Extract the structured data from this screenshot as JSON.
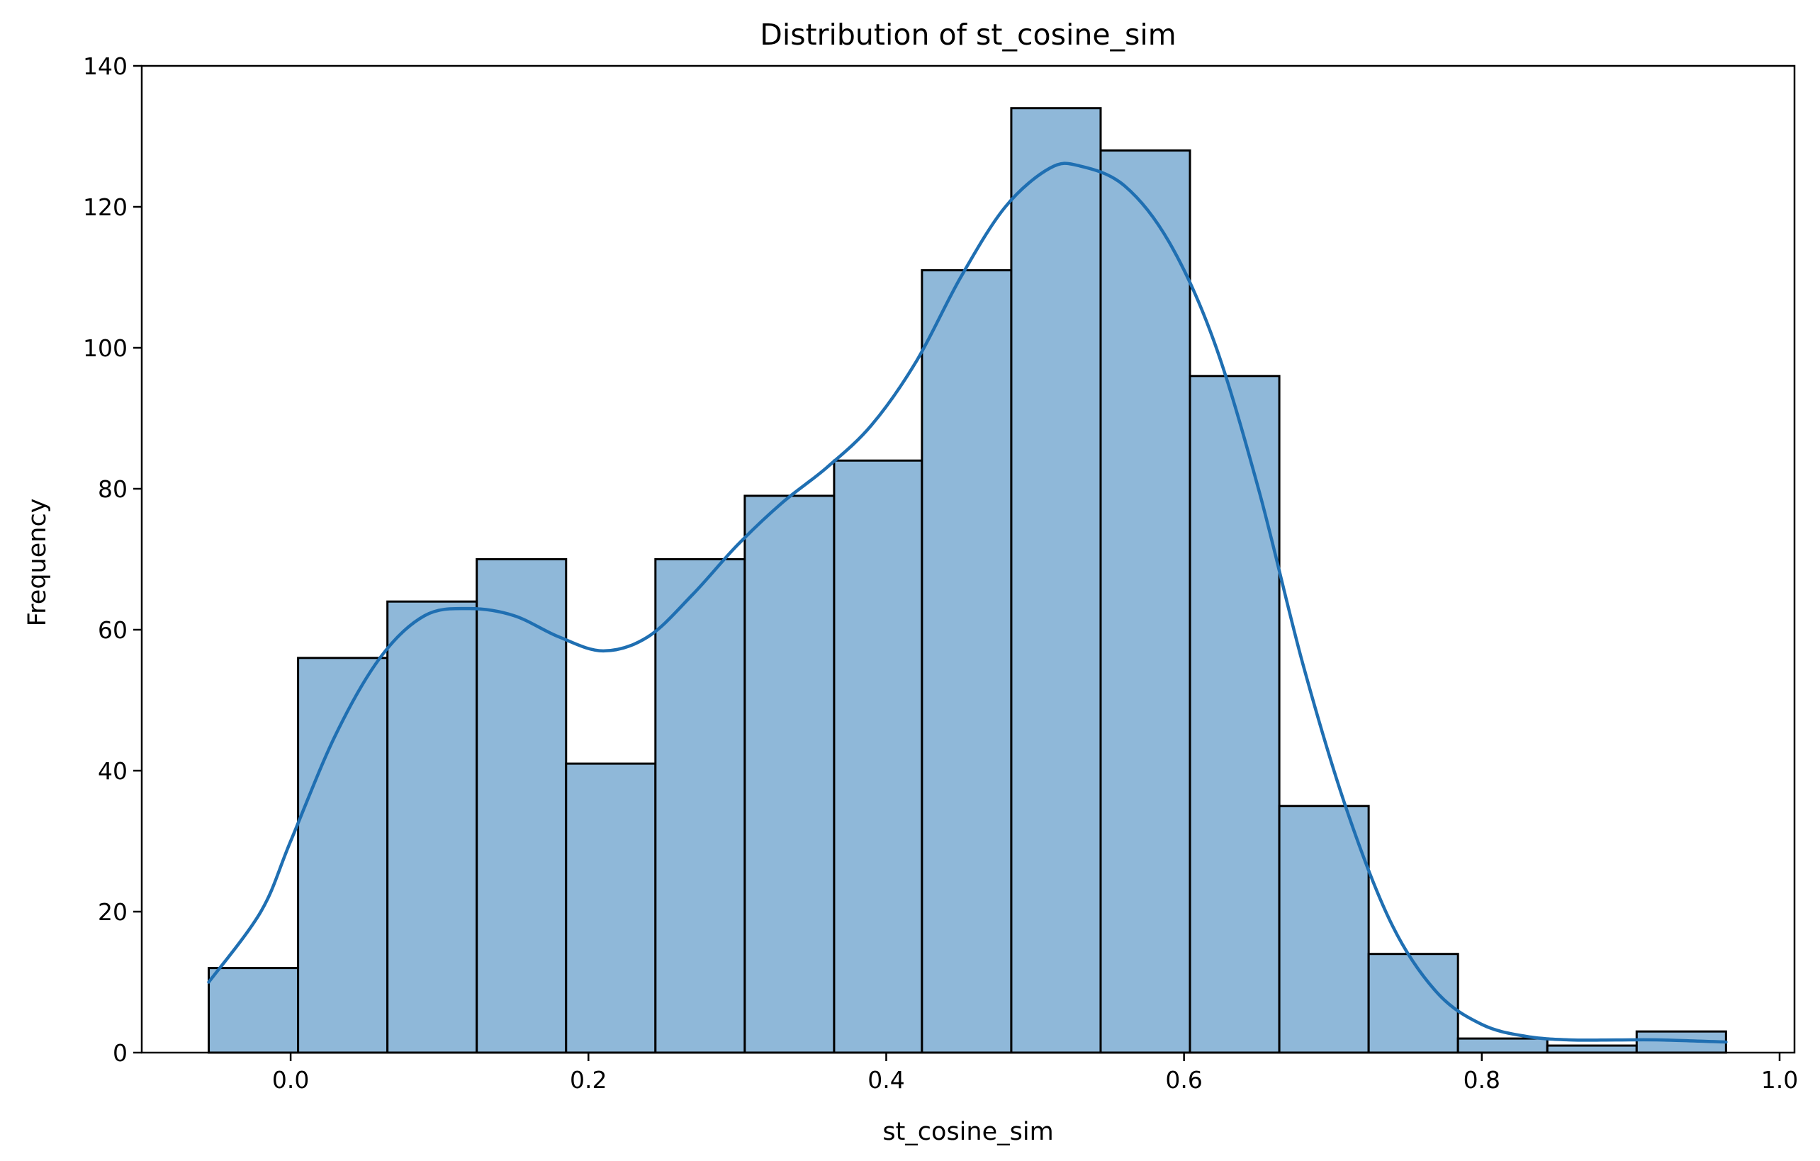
{
  "chart_data": {
    "type": "bar",
    "title": "Distribution of st_cosine_sim",
    "xlabel": "st_cosine_sim",
    "ylabel": "Frequency",
    "xlim": [
      -0.1,
      1.01
    ],
    "ylim": [
      0,
      140
    ],
    "xticks": [
      "0.0",
      "0.2",
      "0.4",
      "0.6",
      "0.8",
      "1.0"
    ],
    "xtick_values": [
      0.0,
      0.2,
      0.4,
      0.6,
      0.8,
      1.0
    ],
    "yticks": [
      "0",
      "20",
      "40",
      "60",
      "80",
      "100",
      "120",
      "140"
    ],
    "ytick_values": [
      0,
      20,
      40,
      60,
      80,
      100,
      120,
      140
    ],
    "bin_edges": [
      -0.055,
      0.005,
      0.065,
      0.125,
      0.185,
      0.245,
      0.305,
      0.365,
      0.424,
      0.484,
      0.544,
      0.604,
      0.664,
      0.724,
      0.784,
      0.844,
      0.904,
      0.964
    ],
    "values": [
      12,
      56,
      64,
      70,
      41,
      70,
      79,
      84,
      111,
      134,
      128,
      96,
      35,
      14,
      2,
      1,
      3
    ],
    "kde": {
      "x": [
        -0.055,
        -0.02,
        0.0,
        0.03,
        0.06,
        0.09,
        0.12,
        0.15,
        0.18,
        0.21,
        0.24,
        0.27,
        0.3,
        0.33,
        0.36,
        0.39,
        0.42,
        0.45,
        0.48,
        0.51,
        0.53,
        0.56,
        0.59,
        0.62,
        0.65,
        0.68,
        0.71,
        0.74,
        0.77,
        0.8,
        0.83,
        0.86,
        0.89,
        0.92,
        0.964
      ],
      "y": [
        10,
        20,
        30,
        45,
        56,
        62,
        63,
        62,
        59,
        57,
        59,
        65,
        72,
        78,
        83,
        89,
        98,
        110,
        120,
        125.5,
        125.8,
        123,
        115,
        101,
        80,
        55,
        34,
        18,
        8.5,
        4,
        2.3,
        1.8,
        1.8,
        1.8,
        1.5
      ]
    },
    "bar_color": "#8fb8d9",
    "edge_color": "#000000",
    "kde_color": "#1f6fb2",
    "grid": false,
    "legend": "none"
  }
}
